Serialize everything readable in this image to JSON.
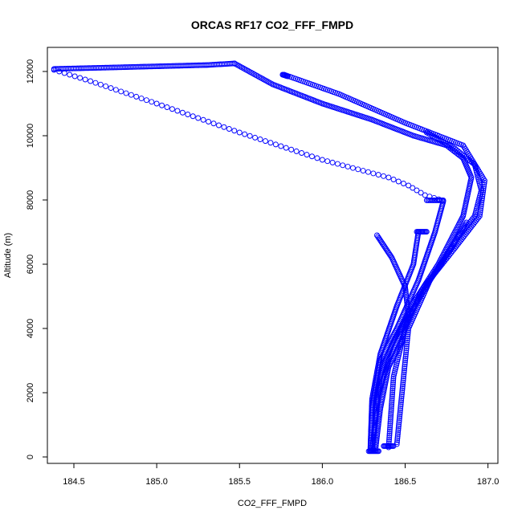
{
  "chart_data": {
    "type": "scatter",
    "title": "ORCAS RF17 CO2_FFF_FMPD",
    "xlabel": "CO2_FFF_FMPD",
    "ylabel": "Altitude (m)",
    "xlim": [
      184.34,
      187.06
    ],
    "ylim": [
      -200,
      12750
    ],
    "xticks": [
      184.5,
      185.0,
      185.5,
      186.0,
      186.5,
      187.0
    ],
    "xtick_labels": [
      "184.5",
      "185.0",
      "185.5",
      "186.0",
      "186.5",
      "187.0"
    ],
    "yticks": [
      0,
      2000,
      4000,
      6000,
      8000,
      10000,
      12000
    ],
    "ytick_labels": [
      "0",
      "2000",
      "4000",
      "6000",
      "8000",
      "10000",
      "12000"
    ],
    "marker": "open-circle",
    "color": "#0000ff",
    "grid": false,
    "legend": "none",
    "series": [
      {
        "x": [
          184.38,
          184.7,
          185.0,
          185.3,
          185.47
        ],
        "y": [
          12080,
          12120,
          12160,
          12200,
          12250
        ],
        "step": 2
      },
      {
        "x": [
          184.38,
          184.6,
          185.0,
          185.5,
          186.0,
          186.4,
          186.52,
          186.62,
          186.73
        ],
        "y": [
          12050,
          11700,
          11000,
          10100,
          9250,
          8700,
          8450,
          8150,
          7980
        ],
        "step": 7
      },
      {
        "x": [
          186.63,
          186.73
        ],
        "y": [
          7990,
          7990
        ],
        "step": 1.5
      },
      {
        "x": [
          186.73,
          186.68,
          186.58,
          186.45,
          186.35,
          186.3,
          186.29
        ],
        "y": [
          7950,
          7000,
          5500,
          4000,
          3000,
          1500,
          200
        ],
        "step": 2
      },
      {
        "x": [
          185.47,
          185.7,
          186.0,
          186.3,
          186.55,
          186.75,
          186.85,
          186.9,
          186.85,
          186.7,
          186.55,
          186.42,
          186.35,
          186.3
        ],
        "y": [
          12250,
          11600,
          11000,
          10500,
          10000,
          9700,
          9300,
          8700,
          7500,
          6000,
          4800,
          3500,
          2500,
          200
        ],
        "step": 2.2
      },
      {
        "x": [
          185.77,
          186.1,
          186.5,
          186.85,
          186.98,
          186.95,
          186.8,
          186.6,
          186.5,
          186.43,
          186.4
        ],
        "y": [
          11900,
          11300,
          10400,
          9700,
          8600,
          7500,
          6500,
          5200,
          4000,
          2500,
          300
        ],
        "step": 2.5
      },
      {
        "x": [
          186.63,
          186.8,
          186.92,
          186.96,
          186.92,
          186.8,
          186.65,
          186.52,
          186.45
        ],
        "y": [
          10100,
          9600,
          9100,
          8300,
          7500,
          6700,
          5500,
          4000,
          400
        ],
        "step": 2.5
      },
      {
        "x": [
          186.58,
          186.55,
          186.45,
          186.35,
          186.3,
          186.29
        ],
        "y": [
          7000,
          6000,
          4700,
          3200,
          1800,
          300
        ],
        "step": 2
      },
      {
        "x": [
          186.87,
          186.78,
          186.65,
          186.5,
          186.4,
          186.33,
          186.31
        ],
        "y": [
          7300,
          6500,
          5500,
          4200,
          3000,
          1800,
          600
        ],
        "step": 2
      },
      {
        "x": [
          186.32,
          186.35,
          186.4,
          186.48,
          186.52,
          186.5,
          186.42,
          186.33
        ],
        "y": [
          200,
          1500,
          2800,
          3600,
          4400,
          5300,
          6200,
          6900
        ],
        "step": 2.2
      },
      {
        "x": [
          186.28,
          186.34
        ],
        "y": [
          180,
          180
        ],
        "step": 1.2
      },
      {
        "x": [
          186.37,
          186.43
        ],
        "y": [
          340,
          340
        ],
        "step": 1.2
      },
      {
        "x": [
          186.57,
          186.63
        ],
        "y": [
          7010,
          7010
        ],
        "step": 1.2
      },
      {
        "x": [
          185.76,
          185.79
        ],
        "y": [
          11900,
          11850
        ],
        "step": 1
      }
    ]
  }
}
